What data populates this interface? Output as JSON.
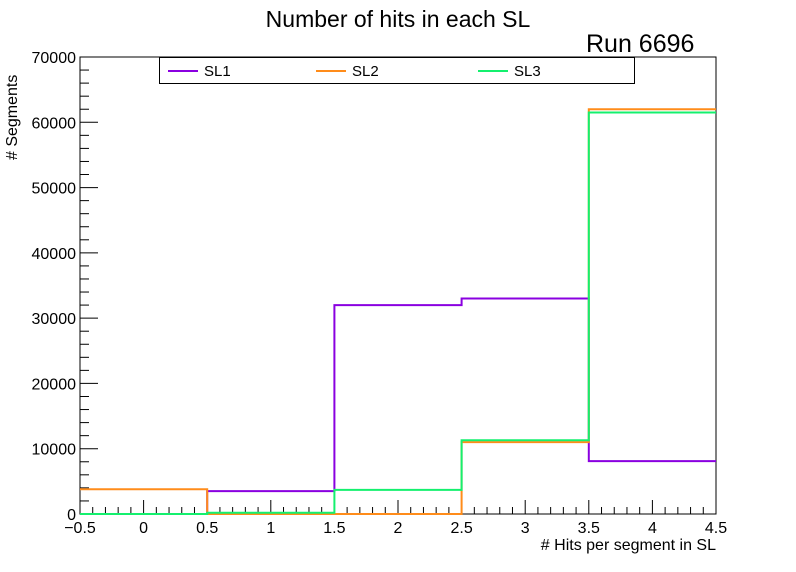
{
  "title": "Number of hits in each SL",
  "run_label": "Run 6696",
  "chart_data": {
    "type": "histogram-step",
    "title": "Number of hits in each SL",
    "xlabel": "# Hits per segment in SL",
    "ylabel": "# Segments",
    "xlim": [
      -0.5,
      4.5
    ],
    "ylim": [
      0,
      70000
    ],
    "x_ticks": [
      "−0.5",
      "0",
      "0.5",
      "1",
      "1.5",
      "2",
      "2.5",
      "3",
      "3.5",
      "4",
      "4.5"
    ],
    "y_ticks": [
      "0",
      "10000",
      "20000",
      "30000",
      "40000",
      "50000",
      "60000",
      "70000"
    ],
    "bin_edges": [
      -0.5,
      0.5,
      1.5,
      2.5,
      3.5,
      4.5
    ],
    "bin_centers": [
      0,
      1,
      2,
      3,
      4
    ],
    "series": [
      {
        "name": "SL1",
        "color": "#8a00e0",
        "values": [
          0,
          3500,
          32000,
          33000,
          8100
        ]
      },
      {
        "name": "SL2",
        "color": "#ff8c1a",
        "values": [
          3800,
          0,
          0,
          11000,
          62000
        ]
      },
      {
        "name": "SL3",
        "color": "#14f06e",
        "values": [
          0,
          200,
          3700,
          11300,
          61500
        ]
      }
    ],
    "legend_position": "top",
    "grid": false
  }
}
